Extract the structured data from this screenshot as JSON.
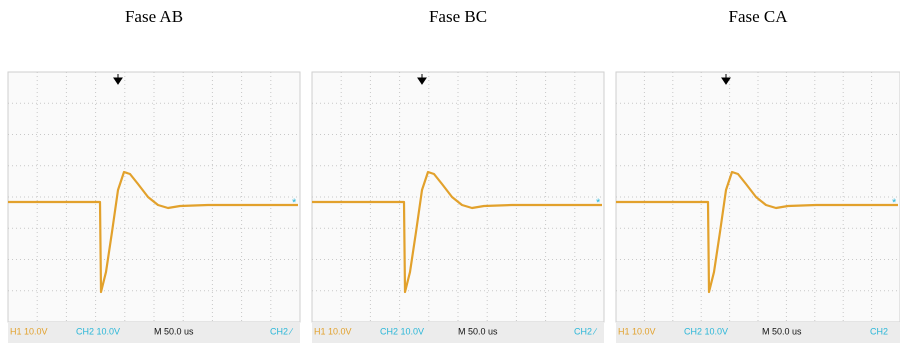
{
  "panels": [
    {
      "title": "Fase AB",
      "footer": [
        "H1 10.0V",
        "CH2 10.0V",
        "M 50.0 us",
        "CH2 ∕"
      ]
    },
    {
      "title": "Fase BC",
      "footer": [
        "H1 10.0V",
        "CH2 10.0V",
        "M 50.0 us",
        "CH2 ∕"
      ]
    },
    {
      "title": "Fase CA",
      "footer": [
        "H1 10.0V",
        "CH2 10.0V",
        "M 50.0 us",
        "CH2"
      ]
    }
  ]
}
